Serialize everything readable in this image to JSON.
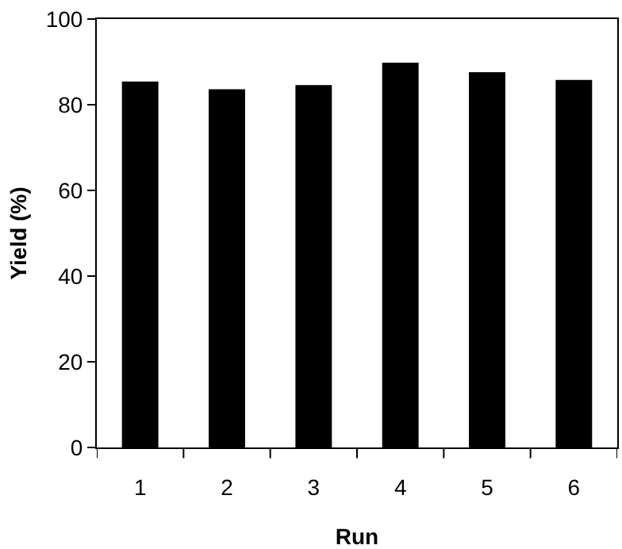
{
  "chart_data": {
    "type": "bar",
    "xlabel": "Run",
    "ylabel": "Yield (%)",
    "categories": [
      "1",
      "2",
      "3",
      "4",
      "5",
      "6"
    ],
    "values": [
      85.4,
      83.6,
      84.6,
      89.8,
      87.6,
      85.8
    ],
    "color": "#000000",
    "ylim": [
      0,
      100
    ],
    "yticks": [
      0,
      20,
      40,
      60,
      80,
      100
    ],
    "grid": false,
    "legend": false
  }
}
